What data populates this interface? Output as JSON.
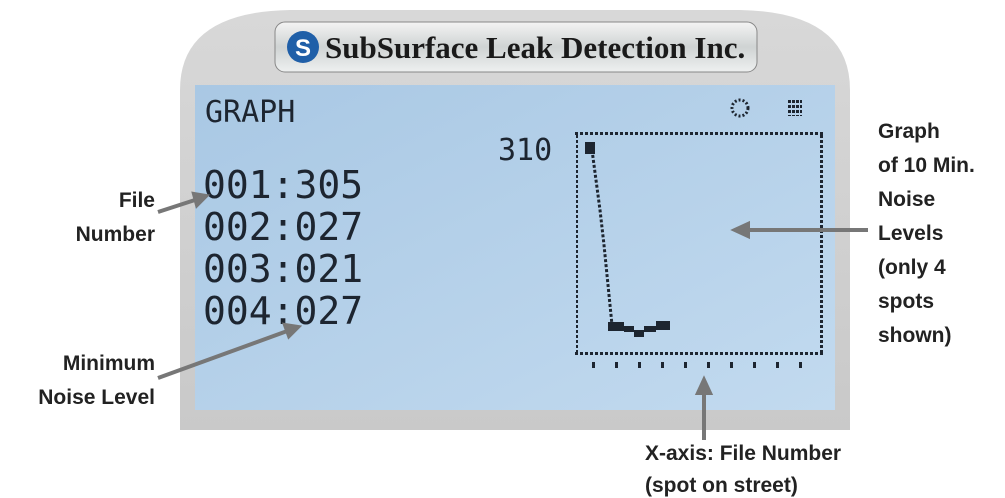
{
  "device": {
    "brand": "SubSurface Leak Detection Inc."
  },
  "screen": {
    "title": "GRAPH",
    "graph_max": "310",
    "rows": [
      "001:305",
      "002:027",
      "003:021",
      "004:027"
    ]
  },
  "annotations": {
    "file_number": [
      "File",
      "Number"
    ],
    "minimum_noise": [
      "Minimum",
      "Noise Level"
    ],
    "graph": [
      "Graph",
      "of 10 Min.",
      "Noise",
      "Levels",
      "(only 4",
      "spots",
      "shown)"
    ],
    "x_axis": [
      "X-axis: File Number",
      "(spot on street)"
    ]
  }
}
